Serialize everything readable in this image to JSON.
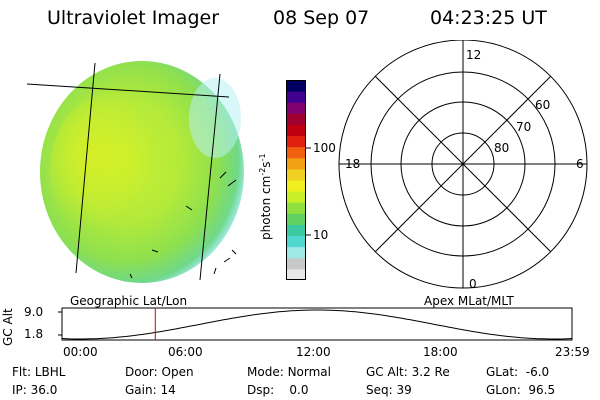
{
  "header": {
    "instrument": "Ultraviolet Imager",
    "date": "08 Sep 07",
    "time": "04:23:25 UT"
  },
  "colorbar": {
    "unit_label": "photon cm",
    "unit_exp1": "-2",
    "unit_s": "s",
    "unit_exp2": "-1",
    "tick_high": "100",
    "tick_low": "10",
    "colors": [
      "#e8e8e8",
      "#c8c8c8",
      "#9fe8e8",
      "#50d8d0",
      "#3cc8a0",
      "#60d060",
      "#90e040",
      "#c8f028",
      "#f0f020",
      "#f0d020",
      "#f0a010",
      "#f06010",
      "#e02010",
      "#c00010",
      "#a00030",
      "#800070",
      "#400090",
      "#000060"
    ]
  },
  "polar": {
    "labels": {
      "top": "12",
      "bottom": "0",
      "left": "18",
      "right": "6"
    },
    "rings": [
      "60",
      "70",
      "80"
    ]
  },
  "coord_labels": {
    "left": "Geographic Lat/Lon",
    "right": "Apex MLat/MLT"
  },
  "gc_plot": {
    "ylabel": "GC Alt",
    "ymax": "9.0",
    "ymin": "1.8",
    "times": [
      "00:00",
      "06:00",
      "12:00",
      "18:00",
      "23:59"
    ],
    "current_time_hours": 4.39
  },
  "status": {
    "flt_label": "Flt:",
    "flt_value": "LBHL",
    "door_label": "Door:",
    "door_value": "Open",
    "mode_label": "Mode:",
    "mode_value": "Normal",
    "gcalt_label": "GC Alt:",
    "gcalt_value": "3.2 Re",
    "glat_label": "GLat:",
    "glat_value": "-6.0",
    "ip_label": "IP:",
    "ip_value": "36.0",
    "gain_label": "Gain:",
    "gain_value": "14",
    "dsp_label": "Dsp:",
    "dsp_value": "0.0",
    "seq_label": "Seq:",
    "seq_value": "39",
    "glon_label": "GLon:",
    "glon_value": "96.5"
  }
}
